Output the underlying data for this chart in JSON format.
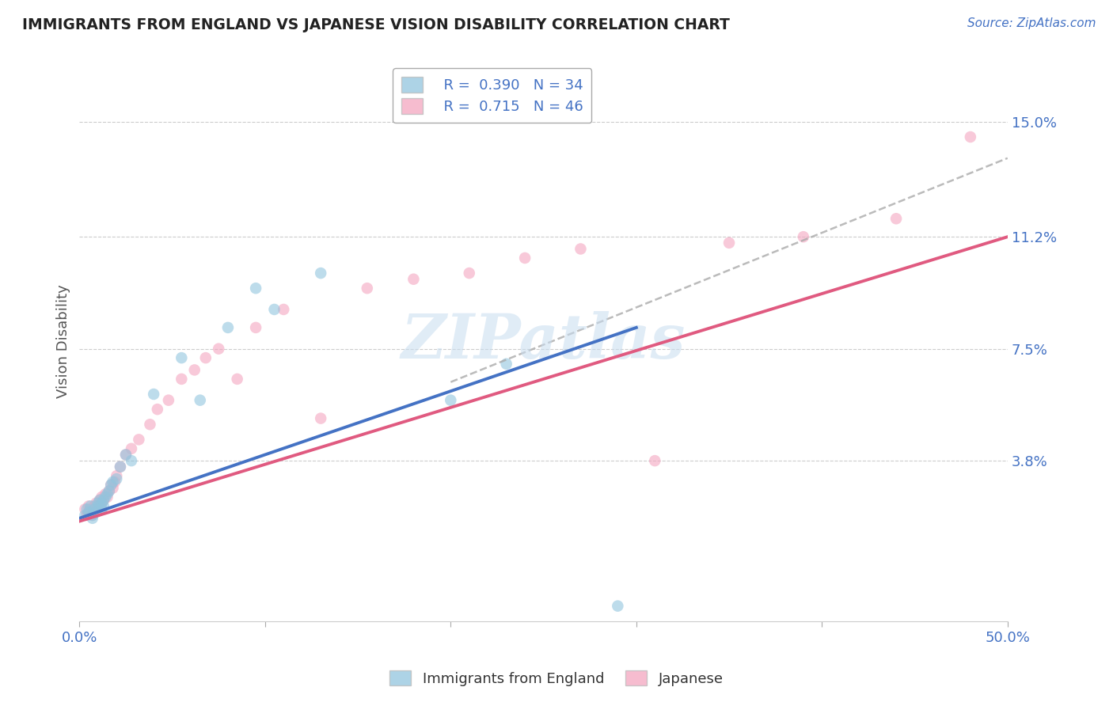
{
  "title": "IMMIGRANTS FROM ENGLAND VS JAPANESE VISION DISABILITY CORRELATION CHART",
  "source": "Source: ZipAtlas.com",
  "ylabel": "Vision Disability",
  "xlim": [
    0.0,
    0.5
  ],
  "ylim": [
    -0.015,
    0.17
  ],
  "yticks": [
    0.0,
    0.038,
    0.075,
    0.112,
    0.15
  ],
  "ytick_labels": [
    "",
    "3.8%",
    "7.5%",
    "11.2%",
    "15.0%"
  ],
  "xticks": [
    0.0,
    0.1,
    0.2,
    0.3,
    0.4,
    0.5
  ],
  "xtick_labels": [
    "0.0%",
    "",
    "",
    "",
    "",
    "50.0%"
  ],
  "legend_r1": "R =  0.390",
  "legend_n1": "N = 34",
  "legend_r2": "R =  0.715",
  "legend_n2": "N = 46",
  "blue_color": "#92c5de",
  "pink_color": "#f4a6c0",
  "blue_line_color": "#4472c4",
  "pink_line_color": "#e05a80",
  "dash_color": "#aaaaaa",
  "title_color": "#222222",
  "tick_color": "#4472c4",
  "watermark": "ZIPatlas",
  "england_x": [
    0.003,
    0.004,
    0.005,
    0.006,
    0.007,
    0.007,
    0.008,
    0.009,
    0.01,
    0.01,
    0.011,
    0.012,
    0.012,
    0.013,
    0.013,
    0.014,
    0.015,
    0.016,
    0.017,
    0.018,
    0.02,
    0.022,
    0.025,
    0.028,
    0.04,
    0.055,
    0.065,
    0.08,
    0.095,
    0.105,
    0.13,
    0.2,
    0.23,
    0.29
  ],
  "england_y": [
    0.02,
    0.022,
    0.021,
    0.023,
    0.02,
    0.019,
    0.022,
    0.021,
    0.024,
    0.023,
    0.025,
    0.022,
    0.024,
    0.023,
    0.025,
    0.026,
    0.027,
    0.028,
    0.03,
    0.031,
    0.032,
    0.036,
    0.04,
    0.038,
    0.06,
    0.072,
    0.058,
    0.082,
    0.095,
    0.088,
    0.1,
    0.058,
    0.07,
    -0.01
  ],
  "japanese_x": [
    0.003,
    0.004,
    0.005,
    0.005,
    0.006,
    0.007,
    0.008,
    0.008,
    0.009,
    0.01,
    0.011,
    0.012,
    0.012,
    0.013,
    0.014,
    0.015,
    0.016,
    0.017,
    0.018,
    0.019,
    0.02,
    0.022,
    0.025,
    0.028,
    0.032,
    0.038,
    0.042,
    0.048,
    0.055,
    0.062,
    0.068,
    0.075,
    0.085,
    0.095,
    0.11,
    0.13,
    0.155,
    0.18,
    0.21,
    0.24,
    0.27,
    0.31,
    0.35,
    0.39,
    0.44,
    0.48
  ],
  "japanese_y": [
    0.022,
    0.02,
    0.021,
    0.023,
    0.022,
    0.02,
    0.023,
    0.021,
    0.024,
    0.022,
    0.025,
    0.024,
    0.026,
    0.025,
    0.027,
    0.026,
    0.028,
    0.03,
    0.029,
    0.031,
    0.033,
    0.036,
    0.04,
    0.042,
    0.045,
    0.05,
    0.055,
    0.058,
    0.065,
    0.068,
    0.072,
    0.075,
    0.065,
    0.082,
    0.088,
    0.052,
    0.095,
    0.098,
    0.1,
    0.105,
    0.108,
    0.038,
    0.11,
    0.112,
    0.118,
    0.145
  ],
  "blue_line_x0": 0.0,
  "blue_line_y0": 0.019,
  "blue_line_x1": 0.3,
  "blue_line_y1": 0.082,
  "pink_line_x0": 0.0,
  "pink_line_y0": 0.018,
  "pink_line_x1": 0.5,
  "pink_line_y1": 0.112,
  "dash_line_x0": 0.2,
  "dash_line_y0": 0.064,
  "dash_line_x1": 0.5,
  "dash_line_y1": 0.138
}
